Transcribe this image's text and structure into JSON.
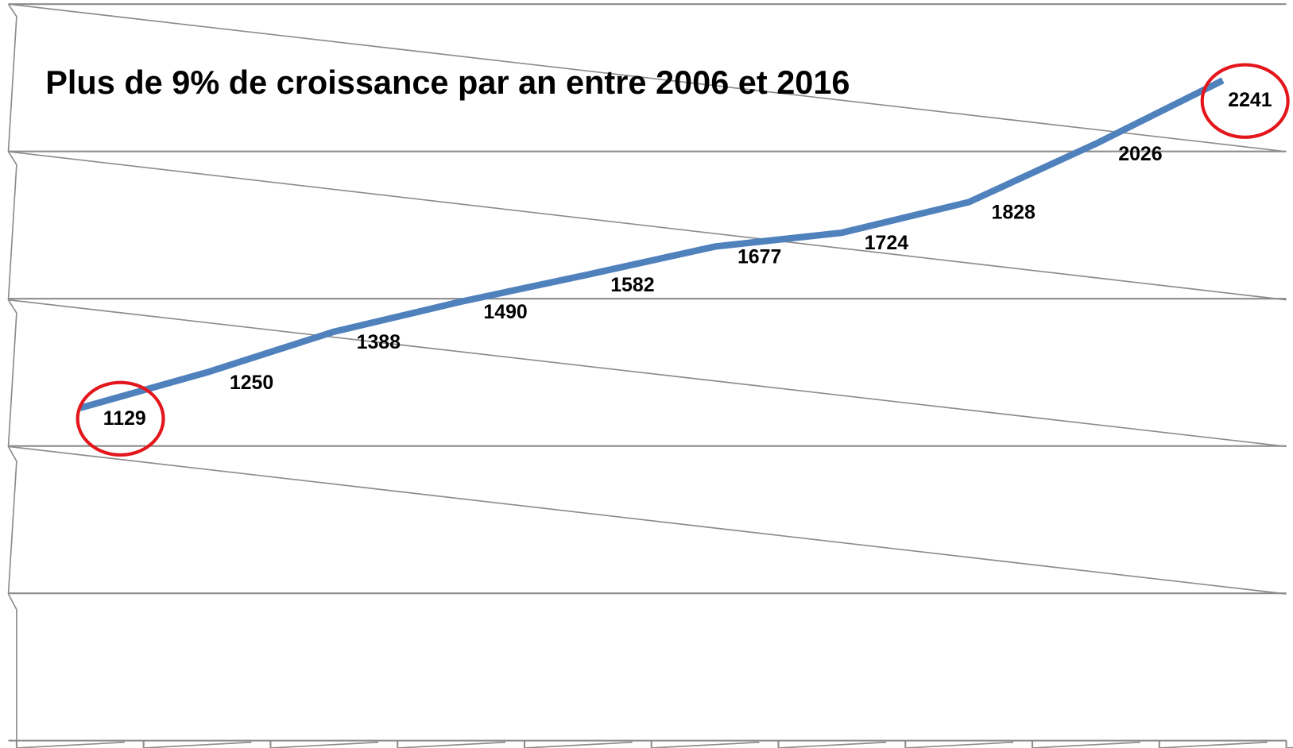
{
  "chart_data": {
    "type": "line",
    "title": "Plus de 9% de croissance par an entre 2006 et 2016",
    "categories": [
      null,
      null,
      null,
      null,
      null,
      null,
      null,
      null,
      null,
      null
    ],
    "series": [
      {
        "name": null,
        "color": "#4f81bd",
        "values": [
          1129,
          1250,
          1388,
          1490,
          1582,
          1677,
          1724,
          1828,
          2026,
          2241
        ]
      }
    ],
    "ylim": [
      0,
      2500
    ],
    "yticks": [
      0,
      500,
      1000,
      1500,
      2000,
      2500
    ],
    "grid": true,
    "data_labels": true,
    "highlight_color": "#e3161b"
  }
}
